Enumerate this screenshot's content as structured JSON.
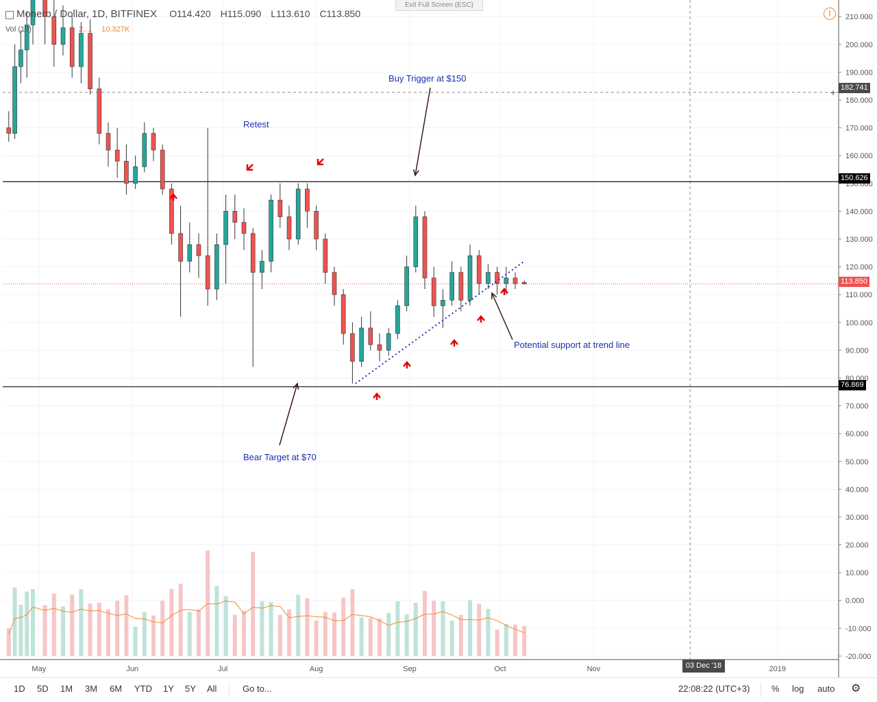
{
  "header": {
    "symbol": "Monero / Dollar, 1D, BITFINEX",
    "open": "O114.420",
    "high": "H115.090",
    "low": "L113.610",
    "close": "C113.850",
    "vol_label": "Vol (10)",
    "vol_value": "2.…",
    "vol_ma": "10.327K"
  },
  "exit_fullscreen": "Exit Full Screen (ESC)",
  "price_axis": {
    "ticks": [
      "210.000",
      "200.000",
      "190.000",
      "180.000",
      "170.000",
      "160.000",
      "150.000",
      "140.000",
      "130.000",
      "120.000",
      "110.000",
      "100.000",
      "90.000",
      "80.000",
      "70.000",
      "60.000",
      "50.000",
      "40.000",
      "30.000",
      "20.000",
      "10.000",
      "0.000",
      "-10.000",
      "-20.000"
    ],
    "badges": {
      "crosshair": "182.741",
      "resistance": "150.626",
      "last": "113.850",
      "support": "76.869"
    }
  },
  "time_axis": {
    "labels": [
      "May",
      "Jun",
      "Jul",
      "Aug",
      "Sep",
      "Oct",
      "Nov",
      "2019"
    ],
    "crosshair_date": "03 Dec '18"
  },
  "annotations": {
    "buy_trigger": "Buy Trigger at $150",
    "retest": "Retest",
    "bear_target": "Bear Target at $70",
    "potential_support": "Potential support at trend line"
  },
  "toolbar": {
    "timeframes": [
      "1D",
      "5D",
      "1M",
      "3M",
      "6M",
      "YTD",
      "1Y",
      "5Y",
      "All"
    ],
    "goto": "Go to...",
    "clock": "22:08:22 (UTC+3)",
    "percent": "%",
    "log": "log",
    "auto": "auto",
    "settings_icon": "gear-icon"
  },
  "colors": {
    "up": "#26a69a",
    "down": "#ef5350",
    "vol_up": "#bfe3d8",
    "vol_down": "#f6c6c7",
    "vol_ma": "#f08a2e",
    "annotation": "#1a2fb5",
    "arrow": "#e60000"
  },
  "chart_data": {
    "type": "candlestick",
    "title": "Monero / Dollar, 1D, BITFINEX",
    "y_range": [
      -20,
      214
    ],
    "last_close": 113.85,
    "levels": [
      {
        "name": "resistance",
        "value": 150.626
      },
      {
        "name": "support",
        "value": 76.869
      },
      {
        "name": "crosshair",
        "value": 182.741
      }
    ],
    "trendline": {
      "from": {
        "date": "2018-08-14",
        "value": 78
      },
      "to": {
        "date": "2018-10-09",
        "value": 122
      }
    },
    "candles": [
      {
        "d": "2018-04-21",
        "o": 170,
        "h": 176,
        "l": 165,
        "c": 168
      },
      {
        "d": "2018-04-23",
        "o": 168,
        "h": 200,
        "l": 166,
        "c": 192
      },
      {
        "d": "2018-04-25",
        "o": 192,
        "h": 205,
        "l": 186,
        "c": 198
      },
      {
        "d": "2018-04-27",
        "o": 198,
        "h": 212,
        "l": 188,
        "c": 207
      },
      {
        "d": "2018-04-29",
        "o": 207,
        "h": 222,
        "l": 200,
        "c": 216
      },
      {
        "d": "2018-05-03",
        "o": 216,
        "h": 226,
        "l": 200,
        "c": 210
      },
      {
        "d": "2018-05-06",
        "o": 210,
        "h": 222,
        "l": 192,
        "c": 200
      },
      {
        "d": "2018-05-09",
        "o": 200,
        "h": 214,
        "l": 196,
        "c": 206
      },
      {
        "d": "2018-05-12",
        "o": 206,
        "h": 210,
        "l": 188,
        "c": 192
      },
      {
        "d": "2018-05-15",
        "o": 192,
        "h": 208,
        "l": 186,
        "c": 204
      },
      {
        "d": "2018-05-18",
        "o": 204,
        "h": 209,
        "l": 182,
        "c": 184
      },
      {
        "d": "2018-05-21",
        "o": 184,
        "h": 188,
        "l": 164,
        "c": 168
      },
      {
        "d": "2018-05-24",
        "o": 168,
        "h": 172,
        "l": 156,
        "c": 162
      },
      {
        "d": "2018-05-27",
        "o": 162,
        "h": 170,
        "l": 152,
        "c": 158
      },
      {
        "d": "2018-05-30",
        "o": 158,
        "h": 164,
        "l": 146,
        "c": 150
      },
      {
        "d": "2018-06-02",
        "o": 150,
        "h": 160,
        "l": 148,
        "c": 156
      },
      {
        "d": "2018-06-05",
        "o": 156,
        "h": 172,
        "l": 154,
        "c": 168
      },
      {
        "d": "2018-06-08",
        "o": 168,
        "h": 170,
        "l": 158,
        "c": 162
      },
      {
        "d": "2018-06-11",
        "o": 162,
        "h": 164,
        "l": 146,
        "c": 148
      },
      {
        "d": "2018-06-14",
        "o": 148,
        "h": 150,
        "l": 128,
        "c": 132
      },
      {
        "d": "2018-06-17",
        "o": 132,
        "h": 142,
        "l": 102,
        "c": 122
      },
      {
        "d": "2018-06-20",
        "o": 122,
        "h": 136,
        "l": 118,
        "c": 128
      },
      {
        "d": "2018-06-23",
        "o": 128,
        "h": 132,
        "l": 116,
        "c": 124
      },
      {
        "d": "2018-06-26",
        "o": 124,
        "h": 170,
        "l": 106,
        "c": 112
      },
      {
        "d": "2018-06-29",
        "o": 112,
        "h": 132,
        "l": 108,
        "c": 128
      },
      {
        "d": "2018-07-02",
        "o": 128,
        "h": 146,
        "l": 114,
        "c": 140
      },
      {
        "d": "2018-07-05",
        "o": 140,
        "h": 146,
        "l": 130,
        "c": 136
      },
      {
        "d": "2018-07-08",
        "o": 136,
        "h": 141,
        "l": 126,
        "c": 132
      },
      {
        "d": "2018-07-11",
        "o": 132,
        "h": 134,
        "l": 84,
        "c": 118
      },
      {
        "d": "2018-07-14",
        "o": 118,
        "h": 126,
        "l": 112,
        "c": 122
      },
      {
        "d": "2018-07-17",
        "o": 122,
        "h": 146,
        "l": 118,
        "c": 144
      },
      {
        "d": "2018-07-20",
        "o": 144,
        "h": 150,
        "l": 134,
        "c": 138
      },
      {
        "d": "2018-07-23",
        "o": 138,
        "h": 142,
        "l": 126,
        "c": 130
      },
      {
        "d": "2018-07-26",
        "o": 130,
        "h": 150,
        "l": 128,
        "c": 148
      },
      {
        "d": "2018-07-29",
        "o": 148,
        "h": 150,
        "l": 134,
        "c": 140
      },
      {
        "d": "2018-08-01",
        "o": 140,
        "h": 142,
        "l": 126,
        "c": 130
      },
      {
        "d": "2018-08-04",
        "o": 130,
        "h": 132,
        "l": 114,
        "c": 118
      },
      {
        "d": "2018-08-07",
        "o": 118,
        "h": 120,
        "l": 106,
        "c": 110
      },
      {
        "d": "2018-08-10",
        "o": 110,
        "h": 112,
        "l": 92,
        "c": 96
      },
      {
        "d": "2018-08-13",
        "o": 96,
        "h": 100,
        "l": 78,
        "c": 86
      },
      {
        "d": "2018-08-16",
        "o": 86,
        "h": 102,
        "l": 84,
        "c": 98
      },
      {
        "d": "2018-08-19",
        "o": 98,
        "h": 104,
        "l": 90,
        "c": 92
      },
      {
        "d": "2018-08-22",
        "o": 92,
        "h": 96,
        "l": 86,
        "c": 90
      },
      {
        "d": "2018-08-25",
        "o": 90,
        "h": 98,
        "l": 88,
        "c": 96
      },
      {
        "d": "2018-08-28",
        "o": 96,
        "h": 108,
        "l": 94,
        "c": 106
      },
      {
        "d": "2018-08-31",
        "o": 106,
        "h": 124,
        "l": 104,
        "c": 120
      },
      {
        "d": "2018-09-03",
        "o": 120,
        "h": 142,
        "l": 118,
        "c": 138
      },
      {
        "d": "2018-09-06",
        "o": 138,
        "h": 140,
        "l": 112,
        "c": 116
      },
      {
        "d": "2018-09-09",
        "o": 116,
        "h": 120,
        "l": 102,
        "c": 106
      },
      {
        "d": "2018-09-12",
        "o": 106,
        "h": 112,
        "l": 98,
        "c": 108
      },
      {
        "d": "2018-09-15",
        "o": 108,
        "h": 122,
        "l": 106,
        "c": 118
      },
      {
        "d": "2018-09-18",
        "o": 118,
        "h": 120,
        "l": 104,
        "c": 108
      },
      {
        "d": "2018-09-21",
        "o": 108,
        "h": 128,
        "l": 106,
        "c": 124
      },
      {
        "d": "2018-09-24",
        "o": 124,
        "h": 126,
        "l": 110,
        "c": 114
      },
      {
        "d": "2018-09-27",
        "o": 114,
        "h": 121,
        "l": 112,
        "c": 118
      },
      {
        "d": "2018-09-30",
        "o": 118,
        "h": 120,
        "l": 110,
        "c": 114
      },
      {
        "d": "2018-10-03",
        "o": 114,
        "h": 120,
        "l": 110,
        "c": 116
      },
      {
        "d": "2018-10-06",
        "o": 116,
        "h": 118,
        "l": 112,
        "c": 114
      },
      {
        "d": "2018-10-09",
        "o": 114.42,
        "h": 115.09,
        "l": 113.61,
        "c": 113.85
      }
    ],
    "volume_range": [
      -20,
      40
    ]
  }
}
